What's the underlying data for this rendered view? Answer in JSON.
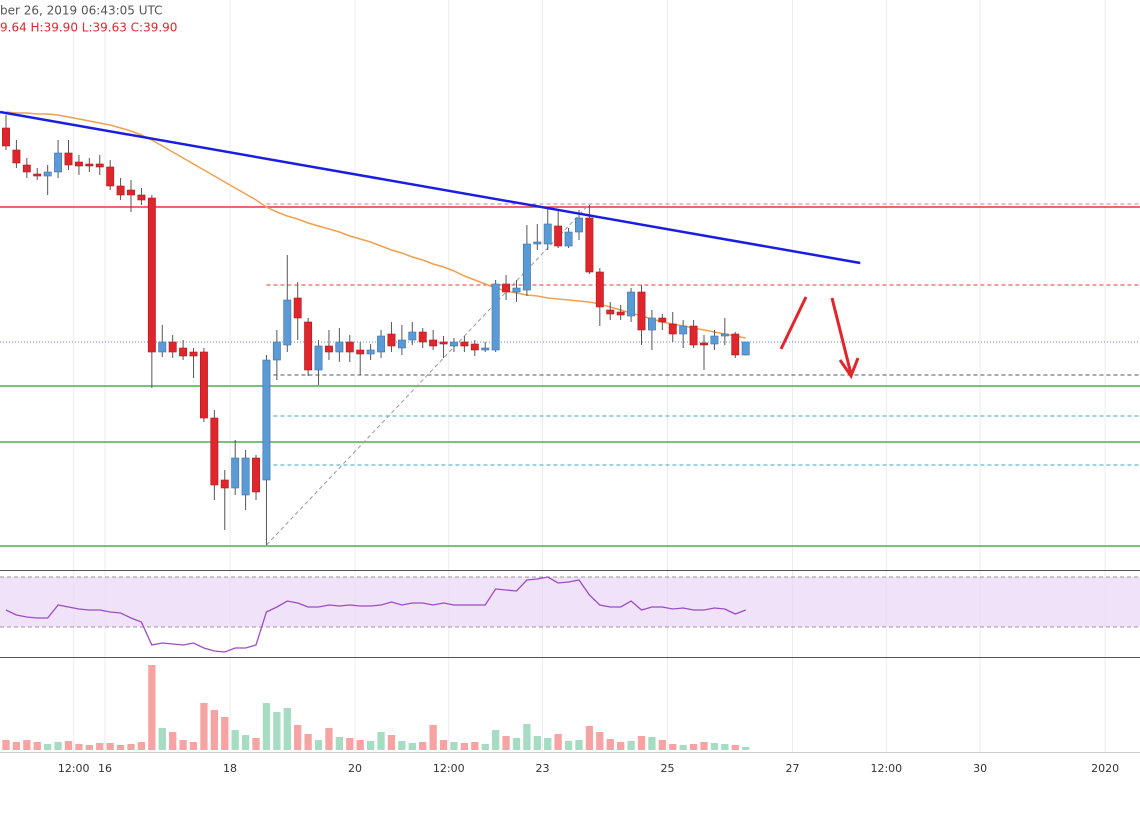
{
  "chart_data": {
    "type": "candlestick",
    "header": {
      "line1": "ber 26, 2019 06:43:05 UTC",
      "line2": "9.64 H:39.90 L:39.63 C:39.90"
    },
    "x": [
      -14,
      -10,
      -6,
      -2,
      2,
      6,
      10,
      14,
      18,
      22,
      26,
      30,
      34,
      38,
      42,
      46,
      50,
      54,
      58,
      62,
      66,
      70,
      74,
      78,
      82,
      86,
      90,
      94,
      98,
      102,
      106,
      110,
      114,
      118,
      122,
      126,
      130,
      134,
      138,
      142,
      146,
      150,
      154,
      158,
      162,
      166,
      170,
      174,
      178,
      182,
      186,
      190,
      194,
      198,
      202,
      206,
      210,
      214,
      218,
      222,
      226,
      230,
      234,
      238,
      242,
      246,
      250,
      254,
      258,
      262,
      266,
      270
    ],
    "open": [
      44.18,
      43.74,
      43.44,
      43.26,
      43.22,
      43.3,
      43.68,
      43.5,
      43.46,
      43.46,
      43.4,
      43.02,
      42.94,
      42.84,
      42.78,
      39.7,
      39.9,
      39.78,
      39.7,
      39.7,
      38.38,
      37.14,
      36.98,
      36.84,
      37.58,
      37.14,
      39.54,
      39.84,
      40.78,
      40.3,
      39.34,
      39.82,
      39.7,
      39.9,
      39.74,
      39.66,
      39.7,
      40.06,
      39.78,
      39.94,
      40.1,
      39.94,
      39.9,
      39.82,
      39.9,
      39.86,
      39.74,
      39.74,
      41.06,
      40.9,
      40.94,
      41.86,
      41.86,
      42.22,
      41.82,
      42.1,
      42.38,
      41.3,
      40.54,
      40.5,
      40.42,
      40.9,
      40.14,
      40.38,
      40.26,
      40.06,
      40.22,
      39.88,
      39.86,
      40.02,
      40.06,
      39.64
    ],
    "high": [
      44.44,
      43.94,
      43.58,
      43.38,
      43.44,
      43.94,
      43.94,
      43.64,
      43.58,
      43.64,
      43.54,
      43.18,
      43.14,
      42.98,
      42.84,
      40.24,
      40.04,
      39.94,
      39.78,
      39.78,
      38.54,
      37.34,
      37.94,
      37.74,
      37.64,
      39.64,
      40.14,
      41.64,
      41.1,
      40.38,
      39.94,
      40.14,
      40.18,
      40.04,
      39.9,
      39.86,
      40.14,
      40.3,
      40.24,
      40.3,
      40.18,
      40.14,
      40.02,
      39.98,
      40.02,
      39.94,
      39.9,
      41.14,
      41.24,
      41.14,
      42.24,
      42.26,
      42.58,
      42.54,
      42.18,
      42.54,
      42.64,
      41.38,
      40.7,
      40.64,
      40.98,
      41.04,
      40.54,
      40.46,
      40.5,
      40.34,
      40.34,
      40.04,
      40.14,
      40.38,
      40.1,
      39.9
    ],
    "low": [
      43.74,
      43.38,
      43.18,
      43.14,
      42.84,
      43.18,
      43.34,
      43.24,
      43.3,
      43.24,
      42.94,
      42.74,
      42.5,
      42.64,
      38.98,
      39.6,
      39.58,
      39.54,
      39.18,
      38.3,
      36.74,
      36.14,
      36.84,
      36.54,
      36.74,
      35.84,
      39.14,
      39.7,
      39.94,
      39.22,
      39.04,
      39.54,
      39.5,
      39.5,
      39.24,
      39.54,
      39.58,
      39.7,
      39.64,
      39.84,
      39.78,
      39.74,
      39.58,
      39.7,
      39.7,
      39.62,
      39.7,
      39.7,
      40.74,
      40.7,
      40.82,
      41.74,
      41.74,
      41.78,
      41.78,
      41.94,
      41.26,
      40.22,
      40.34,
      40.34,
      40.3,
      39.84,
      39.74,
      40.14,
      39.9,
      39.78,
      39.78,
      39.34,
      39.74,
      39.84,
      39.58,
      39.63
    ],
    "close": [
      43.82,
      43.48,
      43.3,
      43.22,
      43.3,
      43.68,
      43.44,
      43.42,
      43.42,
      43.4,
      43.02,
      42.84,
      42.84,
      42.74,
      39.7,
      39.9,
      39.7,
      39.62,
      39.62,
      38.38,
      37.04,
      36.98,
      37.58,
      37.58,
      36.9,
      39.54,
      39.9,
      40.74,
      40.38,
      39.34,
      39.82,
      39.7,
      39.9,
      39.7,
      39.66,
      39.74,
      40.02,
      39.82,
      39.94,
      40.1,
      39.9,
      39.82,
      39.86,
      39.9,
      39.82,
      39.74,
      39.78,
      41.06,
      40.9,
      40.98,
      41.86,
      41.9,
      42.26,
      41.82,
      42.1,
      42.38,
      41.3,
      40.6,
      40.46,
      40.44,
      40.9,
      40.14,
      40.38,
      40.3,
      40.06,
      40.22,
      39.84,
      39.84,
      40.02,
      40.06,
      39.64,
      39.9
    ],
    "up_color": "#5b9bd5",
    "down_color": "#e0262c",
    "xlim": [
      -16.3,
      421.4
    ],
    "ylim": [
      35.34,
      45.94
    ],
    "xticks": [
      {
        "value": 12,
        "label": "12:00"
      },
      {
        "value": 24,
        "label": "16"
      },
      {
        "value": 72,
        "label": "18"
      },
      {
        "value": 120,
        "label": "20"
      },
      {
        "value": 156,
        "label": "12:00"
      },
      {
        "value": 192,
        "label": "23"
      },
      {
        "value": 240,
        "label": "25"
      },
      {
        "value": 288,
        "label": "27"
      },
      {
        "value": 324,
        "label": "12:00"
      },
      {
        "value": 360,
        "label": "30"
      },
      {
        "value": 408,
        "label": "2020"
      }
    ],
    "grid": true,
    "ma": {
      "color": "#f0a050",
      "values": [
        44.5,
        44.48,
        44.48,
        44.46,
        44.46,
        44.44,
        44.4,
        44.36,
        44.32,
        44.28,
        44.24,
        44.18,
        44.12,
        44.04,
        43.94,
        43.82,
        43.7,
        43.58,
        43.46,
        43.34,
        43.22,
        43.1,
        42.98,
        42.86,
        42.74,
        42.6,
        42.5,
        42.42,
        42.36,
        42.28,
        42.22,
        42.16,
        42.1,
        42.02,
        41.96,
        41.9,
        41.82,
        41.74,
        41.68,
        41.6,
        41.54,
        41.46,
        41.4,
        41.32,
        41.22,
        41.14,
        41.06,
        40.98,
        40.92,
        40.88,
        40.84,
        40.82,
        40.78,
        40.76,
        40.74,
        40.72,
        40.7,
        40.66,
        40.6,
        40.54,
        40.48,
        40.42,
        40.36,
        40.3,
        40.26,
        40.22,
        40.18,
        40.14,
        40.1,
        40.06,
        40.02,
        39.98
      ]
    },
    "trendline": {
      "color": "#1a1ee0",
      "x": [
        -16.3,
        314
      ],
      "values": [
        44.5,
        41.48
      ]
    },
    "fib_line": {
      "color": "#999999",
      "x": [
        86,
        210
      ],
      "values": [
        35.84,
        42.66
      ]
    },
    "levels": [
      {
        "value": 42.6,
        "color": "#e8353b",
        "style": "solid"
      },
      {
        "value": 42.66,
        "color": "#999999",
        "style": "dashed",
        "start": 86
      },
      {
        "value": 41.04,
        "color": "#e8353b",
        "style": "dashed",
        "start": 86
      },
      {
        "value": 39.9,
        "color": "#5b8fd5",
        "style": "dotted"
      },
      {
        "value": 39.24,
        "color": "#555555",
        "style": "dashed",
        "start": 86
      },
      {
        "value": 39.02,
        "color": "#4caf50",
        "style": "solid"
      },
      {
        "value": 38.42,
        "color": "#3fa7c0",
        "style": "dashed",
        "start": 86
      },
      {
        "value": 37.9,
        "color": "#4caf50",
        "style": "solid"
      },
      {
        "value": 37.44,
        "color": "#3fa7c0",
        "style": "dashed",
        "start": 86
      },
      {
        "value": 35.82,
        "color": "#4caf50",
        "style": "solid"
      }
    ],
    "rsi": {
      "color": "#9c4dc4",
      "ylim": [
        6,
        74
      ],
      "band": [
        30,
        70
      ],
      "band_color": "#e9d5f5",
      "values": [
        43.6,
        39.6,
        38,
        37.2,
        37.2,
        47.6,
        46,
        44.4,
        43.6,
        43.6,
        42,
        41.2,
        37.2,
        34,
        15.6,
        17.2,
        16.4,
        15.6,
        17.2,
        13.2,
        10.8,
        10,
        13.2,
        13.2,
        15.6,
        42,
        46,
        50.8,
        49.2,
        46,
        46,
        47.6,
        46.8,
        47.6,
        46.8,
        46.8,
        47.6,
        50,
        47.6,
        49.2,
        49.2,
        47.6,
        49.2,
        47.6,
        47.6,
        47.6,
        47.6,
        60.4,
        59.6,
        58.8,
        67.6,
        68.4,
        70,
        65.2,
        66,
        67.6,
        55.6,
        47.6,
        46,
        46,
        50.8,
        43.6,
        46,
        46,
        44.4,
        45.2,
        43.6,
        43.6,
        45.2,
        44.4,
        40.4,
        43.6
      ]
    },
    "volume": {
      "ylim": [
        0,
        90
      ],
      "up_color": "#a5dcc2",
      "down_color": "#f5a3a3",
      "values": [
        10,
        8,
        10,
        8,
        6,
        8,
        9,
        6,
        5,
        7,
        7,
        5,
        6,
        8,
        85,
        22,
        18,
        10,
        8,
        47,
        40,
        33,
        20,
        15,
        12,
        47,
        38,
        42,
        25,
        16,
        10,
        22,
        13,
        12,
        10,
        9,
        18,
        15,
        9,
        7,
        8,
        25,
        10,
        8,
        7,
        8,
        6,
        20,
        14,
        12,
        26,
        14,
        12,
        16,
        9,
        10,
        24,
        18,
        11,
        8,
        9,
        14,
        13,
        10,
        6,
        5,
        6,
        8,
        7,
        6,
        5,
        3
      ]
    }
  }
}
